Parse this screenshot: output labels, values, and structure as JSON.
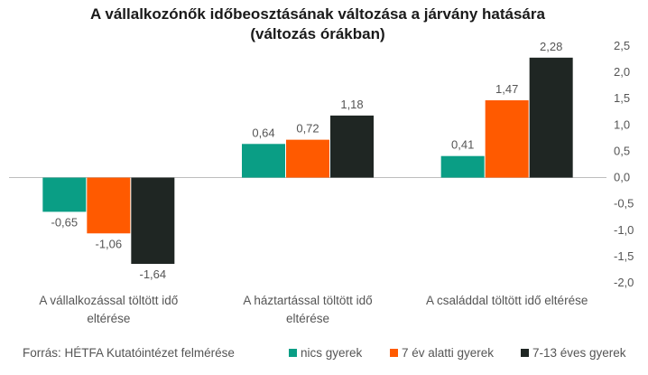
{
  "chart_data": {
    "type": "bar",
    "title": "A vállalkozónők időbeosztásának változása a járvány hatására",
    "subtitle": "(változás órákban)",
    "categories": [
      [
        "A vállalkozással töltött idő",
        "eltérése"
      ],
      [
        "A háztartással töltött idő",
        "eltérése"
      ],
      [
        "A családdal töltött idő eltérése"
      ]
    ],
    "series": [
      {
        "name": "nics gyerek",
        "color": "#0a9e85",
        "values": [
          -0.65,
          0.64,
          0.41
        ],
        "labels": [
          "-0,65",
          "0,64",
          "0,41"
        ]
      },
      {
        "name": "7 év alatti gyerek",
        "color": "#ff5a00",
        "values": [
          -1.06,
          0.72,
          1.47
        ],
        "labels": [
          "-1,06",
          "0,72",
          "1,47"
        ]
      },
      {
        "name": "7-13 éves gyerek",
        "color": "#1f2623",
        "values": [
          -1.64,
          1.18,
          2.28
        ],
        "labels": [
          "-1,64",
          "1,18",
          "2,28"
        ]
      }
    ],
    "yaxis": {
      "position": "right",
      "min": -2.0,
      "max": 2.5,
      "ticks": [
        2.5,
        2.0,
        1.5,
        1.0,
        0.5,
        0.0,
        -0.5,
        -1.0,
        -1.5,
        -2.0
      ],
      "tick_labels": [
        "2,5",
        "2,0",
        "1,5",
        "1,0",
        "0,5",
        "0,0",
        "-0,5",
        "-1,0",
        "-1,5",
        "-2,0"
      ]
    },
    "grid": false,
    "legend_position": "bottom-right",
    "source": "Forrás: HÉTFA Kutatóintézet felmérése"
  }
}
